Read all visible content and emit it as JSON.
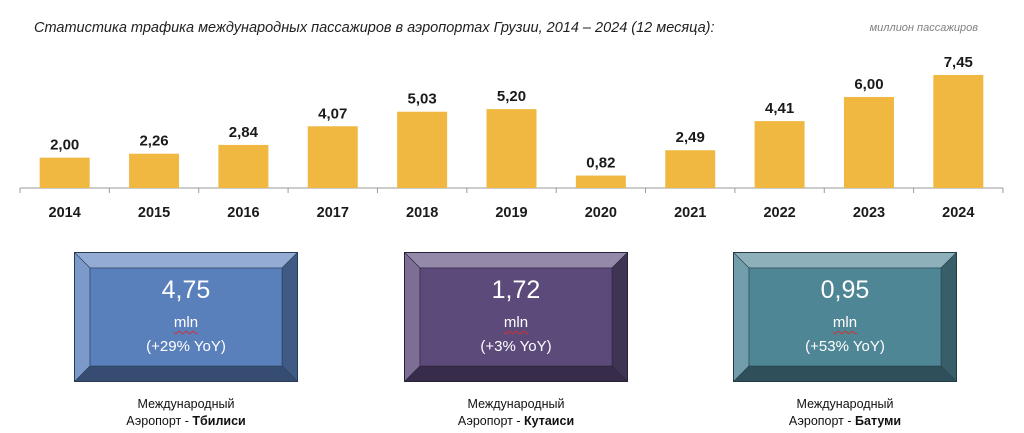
{
  "title": "Статистика трафика международных пассажиров в аэропортах Грузии, 2014 – 2024 (12 месяца):",
  "unit_label": "миллион пассажиров",
  "chart_data": {
    "type": "bar",
    "title": "Статистика трафика международных пассажиров в аэропортах Грузии, 2014 – 2024 (12 месяца):",
    "ylabel": "миллион пассажиров",
    "categories": [
      "2014",
      "2015",
      "2016",
      "2017",
      "2018",
      "2019",
      "2020",
      "2021",
      "2022",
      "2023",
      "2024"
    ],
    "values": [
      2.0,
      2.26,
      2.84,
      4.07,
      5.03,
      5.2,
      0.82,
      2.49,
      4.41,
      6.0,
      7.45
    ],
    "value_labels": [
      "2,00",
      "2,26",
      "2,84",
      "4,07",
      "5,03",
      "5,20",
      "0,82",
      "2,49",
      "4,41",
      "6,00",
      "7,45"
    ],
    "ylim": [
      0,
      8
    ],
    "bar_color": "#F0B841",
    "grid": false
  },
  "airports": [
    {
      "value": "4,75",
      "unit": "mln",
      "yoy": "(+29% YoY)",
      "caption_line1": "Международный",
      "caption_prefix": "Аэропорт - ",
      "name": "Тбилиси",
      "color": "#5A80BC"
    },
    {
      "value": "1,72",
      "unit": "mln",
      "yoy": "(+3% YoY)",
      "caption_line1": "Международный",
      "caption_prefix": "Аэропорт - ",
      "name": "Кутаиси",
      "color": "#5C4A7A"
    },
    {
      "value": "0,95",
      "unit": "mln",
      "yoy": "(+53% YoY)",
      "caption_line1": "Международный",
      "caption_prefix": "Аэропорт - ",
      "name": "Батуми",
      "color": "#4F8696"
    }
  ]
}
